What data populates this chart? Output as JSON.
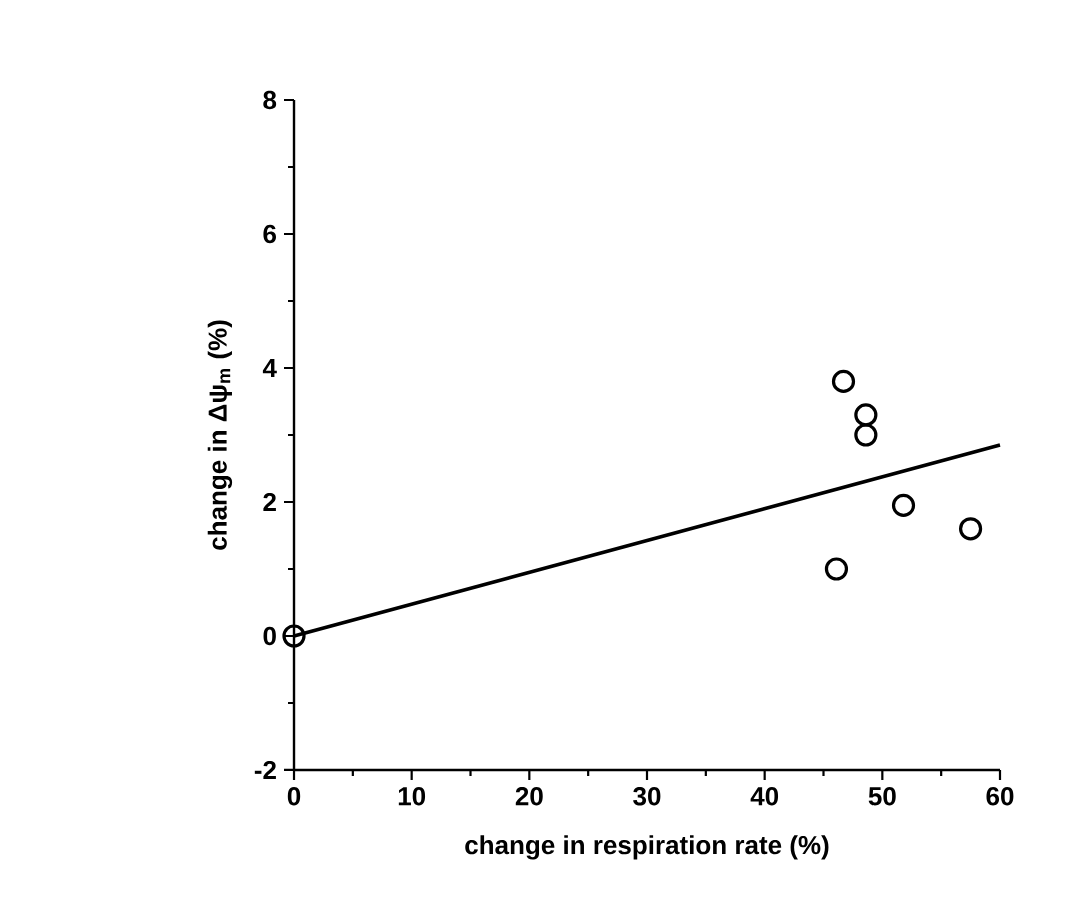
{
  "chart_data": {
    "type": "scatter",
    "xlabel": "change in respiration rate (%)",
    "ylabel": "change in Δψ$_{m}$ (%)",
    "xlim": [
      0,
      60
    ],
    "ylim": [
      -2,
      8
    ],
    "xticks": [
      0,
      10,
      20,
      30,
      40,
      50,
      60
    ],
    "yticks": [
      -2,
      0,
      2,
      4,
      6,
      8
    ],
    "grid": false,
    "marker": "circle",
    "series": [
      {
        "color": "#000000",
        "x": [
          0,
          46.7,
          48.6,
          48.6,
          51.8,
          57.5,
          46.1
        ],
        "values": [
          0,
          3.8,
          3.3,
          3.0,
          1.95,
          1.6,
          1.0
        ]
      },
      {
        "type": "line",
        "color": "#000000",
        "x": [
          0,
          60
        ],
        "values": [
          0,
          2.85
        ],
        "marker": "none",
        "line_style": "solid"
      }
    ]
  }
}
